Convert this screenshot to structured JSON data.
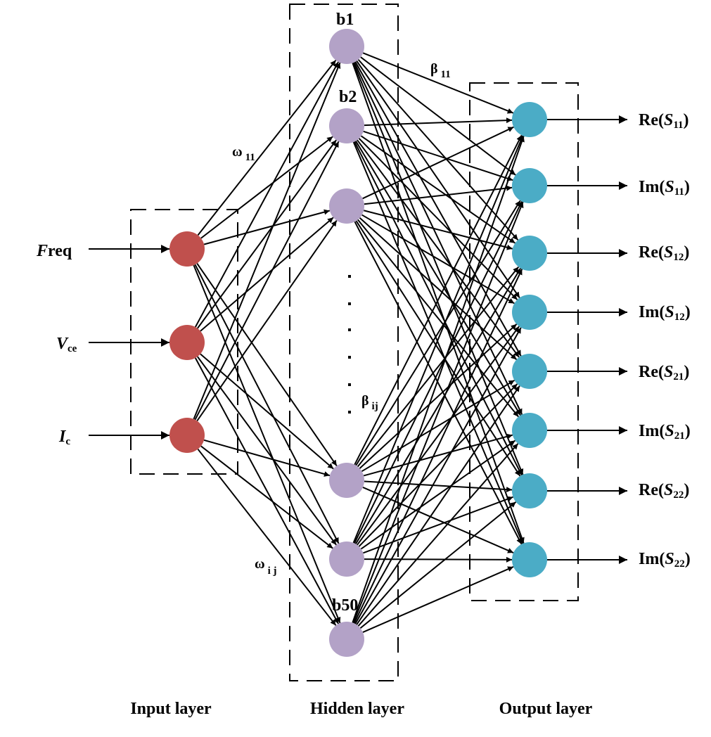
{
  "inputs": [
    {
      "name": "F",
      "tail": "req",
      "italic_part": "F"
    },
    {
      "name": "V",
      "sub": "ce"
    },
    {
      "name": "I",
      "sub": "c"
    }
  ],
  "hidden_labels": {
    "first": "b1",
    "second": "b2",
    "last": "b50"
  },
  "outputs": [
    {
      "prefix": "Re(",
      "s": "S",
      "sub": "11",
      "suffix": ")"
    },
    {
      "prefix": "Im(",
      "s": "S",
      "sub": "11",
      "suffix": ")"
    },
    {
      "prefix": "Re(",
      "s": "S",
      "sub": "12",
      "suffix": ")"
    },
    {
      "prefix": "Im(",
      "s": "S",
      "sub": "12",
      "suffix": ")"
    },
    {
      "prefix": "Re(",
      "s": "S",
      "sub": "21",
      "suffix": ")"
    },
    {
      "prefix": "Im(",
      "s": "S",
      "sub": "21",
      "suffix": ")"
    },
    {
      "prefix": "Re(",
      "s": "S",
      "sub": "22",
      "suffix": ")"
    },
    {
      "prefix": "Im(",
      "s": "S",
      "sub": "22",
      "suffix": ")"
    }
  ],
  "weights": {
    "w11": {
      "sym": "ω",
      "sub": "11"
    },
    "wij": {
      "sym": "ω",
      "sub": "i j"
    },
    "b11": {
      "sym": "β",
      "sub": "11"
    },
    "bij": {
      "sym": "β",
      "sub": "ij"
    }
  },
  "captions": {
    "input": "Input layer",
    "hidden": "Hidden layer",
    "output": "Output layer"
  },
  "colors": {
    "input_node": "#c0504d",
    "hidden_node": "#b3a2c7",
    "output_node": "#4bacc6"
  }
}
